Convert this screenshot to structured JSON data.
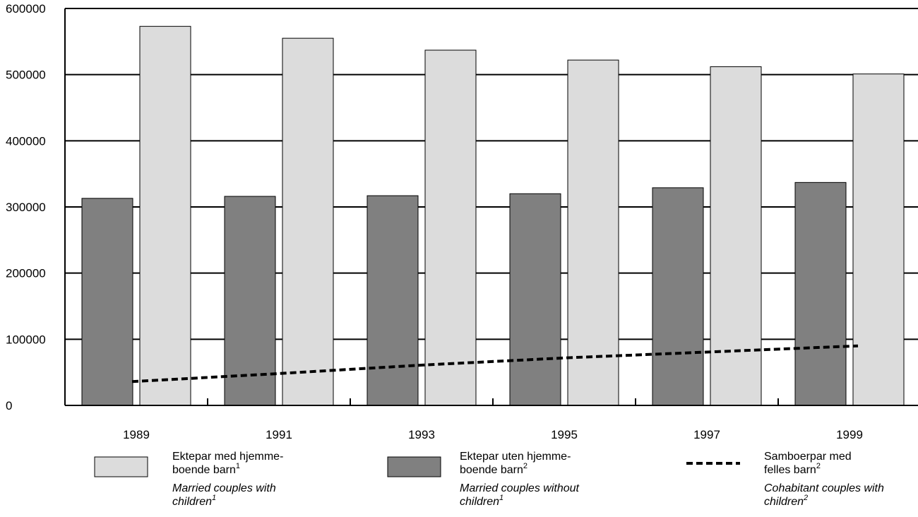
{
  "chart_data": {
    "type": "bar",
    "title": "",
    "xlabel": "",
    "ylabel": "",
    "categories": [
      "1989",
      "1991",
      "1993",
      "1995",
      "1997",
      "1999"
    ],
    "ylim": [
      0,
      600000
    ],
    "yticks": [
      "0",
      "100000",
      "200000",
      "300000",
      "400000",
      "500000",
      "600000"
    ],
    "grid": true,
    "legend_position": "bottom",
    "series": [
      {
        "name": "Ektepar uten hjemmeboende barn / Married couples without children",
        "type": "bar",
        "color": "#808080",
        "values": [
          313000,
          316000,
          317000,
          320000,
          329000,
          337000
        ]
      },
      {
        "name": "Ektepar med hjemmeboende barn / Married couples with children",
        "type": "bar",
        "color": "#dcdcdc",
        "values": [
          573000,
          555000,
          537000,
          522000,
          512000,
          501000
        ]
      },
      {
        "name": "Samboerpar med felles barn / Cohabitant couples with children",
        "type": "line",
        "style": "dashed",
        "color": "#000000",
        "values": [
          36000,
          48000,
          61000,
          72000,
          81000,
          90000
        ]
      }
    ],
    "legend": [
      {
        "key": "married_with",
        "swatch": "box-light",
        "lines": [
          {
            "parts": [
              {
                "t": "Ektepar med hjemme-"
              }
            ]
          },
          {
            "parts": [
              {
                "t": "boende barn"
              },
              {
                "t": "1",
                "sup": true
              }
            ]
          },
          {
            "italic": true,
            "parts": [
              {
                "t": "Married couples with"
              }
            ]
          },
          {
            "italic": true,
            "parts": [
              {
                "t": "children"
              },
              {
                "t": "1",
                "sup": true
              }
            ]
          }
        ]
      },
      {
        "key": "married_without",
        "swatch": "box-dark",
        "lines": [
          {
            "parts": [
              {
                "t": "Ektepar uten hjemme-"
              }
            ]
          },
          {
            "parts": [
              {
                "t": "boende barn"
              },
              {
                "t": "2",
                "sup": true
              }
            ]
          },
          {
            "italic": true,
            "parts": [
              {
                "t": "Married couples without"
              }
            ]
          },
          {
            "italic": true,
            "parts": [
              {
                "t": "children"
              },
              {
                "t": "1",
                "sup": true
              }
            ]
          }
        ]
      },
      {
        "key": "cohabitant",
        "swatch": "dashed-line",
        "lines": [
          {
            "parts": [
              {
                "t": "Samboerpar med"
              }
            ]
          },
          {
            "parts": [
              {
                "t": "felles barn"
              },
              {
                "t": "2",
                "sup": true
              }
            ]
          },
          {
            "italic": true,
            "parts": [
              {
                "t": "Cohabitant couples with"
              }
            ]
          },
          {
            "italic": true,
            "parts": [
              {
                "t": "children"
              },
              {
                "t": "2",
                "sup": true
              }
            ]
          }
        ]
      }
    ]
  }
}
